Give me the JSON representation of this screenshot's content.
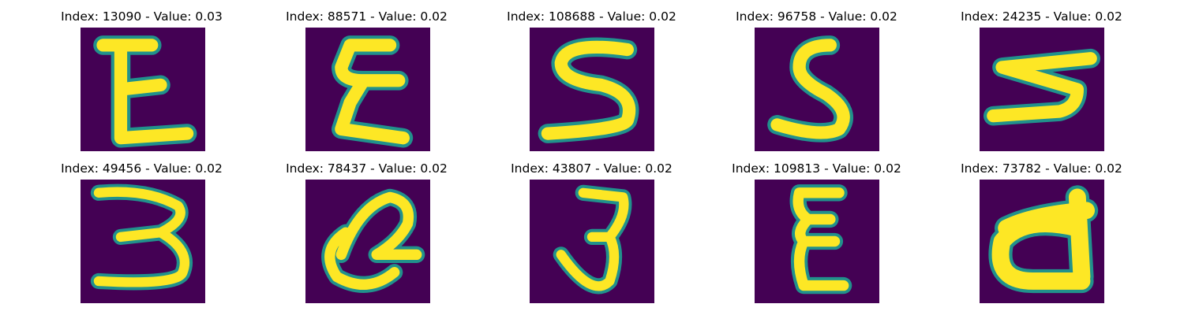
{
  "figure": {
    "panels": [
      {
        "title": "Index: 13090 - Value: 0.03",
        "glyph": "E"
      },
      {
        "title": "Index: 88571 - Value: 0.02",
        "glyph": "epsilon"
      },
      {
        "title": "Index: 108688 - Value: 0.02",
        "glyph": "S"
      },
      {
        "title": "Index: 96758 - Value: 0.02",
        "glyph": "S"
      },
      {
        "title": "Index: 24235 - Value: 0.02",
        "glyph": "S-rotated"
      },
      {
        "title": "Index: 49456 - Value: 0.02",
        "glyph": "3"
      },
      {
        "title": "Index: 78437 - Value: 0.02",
        "glyph": "Q-like"
      },
      {
        "title": "Index: 43807 - Value: 0.02",
        "glyph": "3"
      },
      {
        "title": "Index: 109813 - Value: 0.02",
        "glyph": "epsilon"
      },
      {
        "title": "Index: 73782 - Value: 0.02",
        "glyph": "d"
      }
    ],
    "colors": {
      "background": "#440154",
      "stroke_core": "#fde725",
      "stroke_edge": "#21918c"
    }
  }
}
